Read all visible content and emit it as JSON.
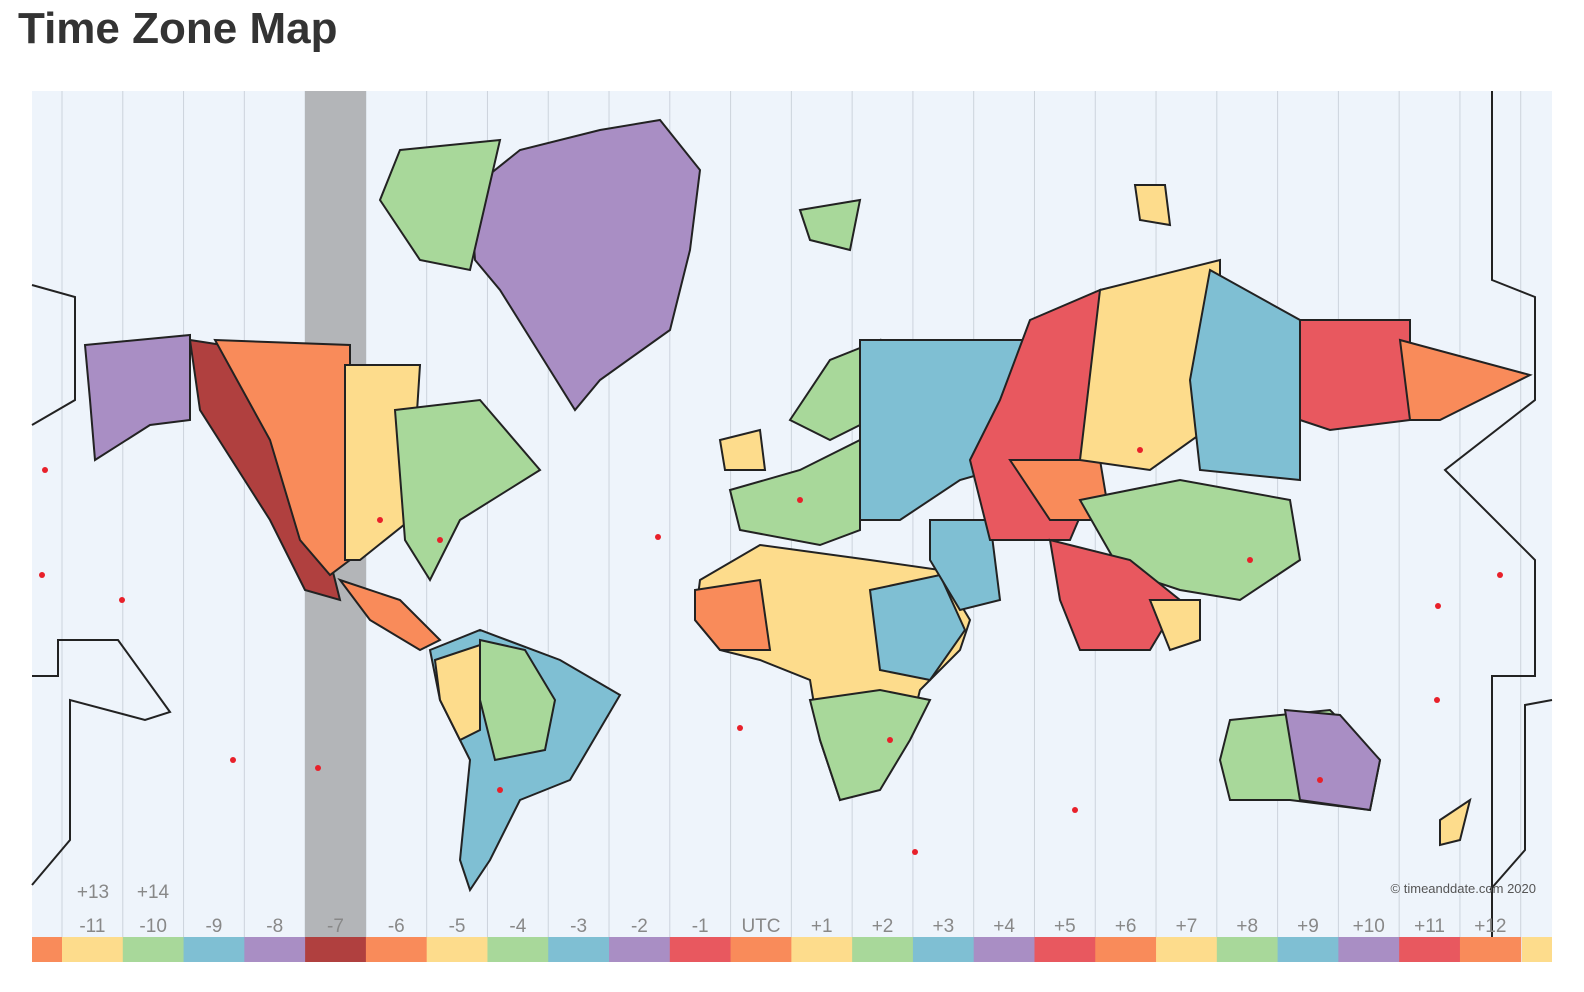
{
  "header": {
    "title": "Time Zone Map"
  },
  "map": {
    "zones": [
      {
        "label": "-11",
        "color": "#fddc8c"
      },
      {
        "label": "-10",
        "color": "#a8d89a"
      },
      {
        "label": "-9",
        "color": "#7fbfd3"
      },
      {
        "label": "-8",
        "color": "#a98ec4"
      },
      {
        "label": "-7",
        "color": "#b0403f"
      },
      {
        "label": "-6",
        "color": "#f98b5a"
      },
      {
        "label": "-5",
        "color": "#fddc8c"
      },
      {
        "label": "-4",
        "color": "#a8d89a"
      },
      {
        "label": "-3",
        "color": "#7fbfd3"
      },
      {
        "label": "-2",
        "color": "#a98ec4"
      },
      {
        "label": "-1",
        "color": "#e8585f"
      },
      {
        "label": "UTC",
        "color": "#f98b5a"
      },
      {
        "label": "+1",
        "color": "#fddc8c"
      },
      {
        "label": "+2",
        "color": "#a8d89a"
      },
      {
        "label": "+3",
        "color": "#7fbfd3"
      },
      {
        "label": "+4",
        "color": "#a98ec4"
      },
      {
        "label": "+5",
        "color": "#e8585f"
      },
      {
        "label": "+6",
        "color": "#f98b5a"
      },
      {
        "label": "+7",
        "color": "#fddc8c"
      },
      {
        "label": "+8",
        "color": "#a8d89a"
      },
      {
        "label": "+9",
        "color": "#7fbfd3"
      },
      {
        "label": "+10",
        "color": "#a98ec4"
      },
      {
        "label": "+11",
        "color": "#e8585f"
      },
      {
        "label": "+12",
        "color": "#f98b5a"
      }
    ],
    "extra_labels": [
      "+13",
      "+14"
    ],
    "copyright": "© timeanddate.com 2020"
  }
}
